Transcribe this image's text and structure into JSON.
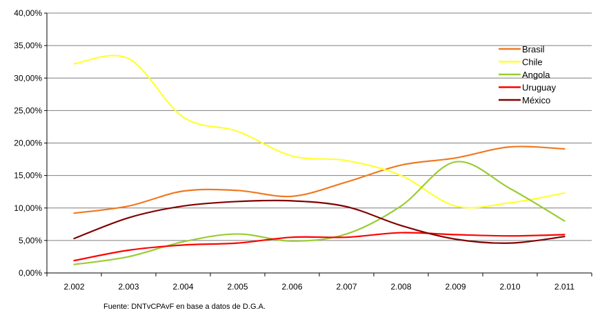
{
  "chart_data": {
    "type": "line",
    "categories": [
      "2.002",
      "2.003",
      "2.004",
      "2.005",
      "2.006",
      "2.007",
      "2.008",
      "2.009",
      "2.010",
      "2.011"
    ],
    "y_ticks": [
      "0,00%",
      "5,00%",
      "10,00%",
      "15,00%",
      "20,00%",
      "25,00%",
      "30,00%",
      "35,00%",
      "40,00%"
    ],
    "ylim": [
      0,
      40
    ],
    "grid": true,
    "legend_position": "right",
    "series": [
      {
        "name": "Brasil",
        "color": "#f07820",
        "values": [
          9.2,
          10.3,
          12.6,
          12.7,
          11.8,
          14.0,
          16.6,
          17.7,
          19.4,
          19.1
        ]
      },
      {
        "name": "Chile",
        "color": "#ffff33",
        "values": [
          32.2,
          33.0,
          24.0,
          21.8,
          18.0,
          17.3,
          15.0,
          10.3,
          10.8,
          12.3
        ]
      },
      {
        "name": "Angola",
        "color": "#99cc33",
        "values": [
          1.3,
          2.5,
          4.8,
          6.0,
          4.9,
          6.0,
          10.3,
          17.1,
          13.0,
          8.0
        ]
      },
      {
        "name": "Uruguay",
        "color": "#ff0000",
        "values": [
          1.9,
          3.5,
          4.3,
          4.6,
          5.5,
          5.5,
          6.2,
          5.9,
          5.7,
          5.9
        ]
      },
      {
        "name": "México",
        "color": "#800000",
        "values": [
          5.3,
          8.5,
          10.3,
          11.0,
          11.1,
          10.2,
          7.3,
          5.2,
          4.6,
          5.6
        ]
      }
    ],
    "source_note": "Fuente: DNTvCPAvF en base a datos de D.G.A."
  }
}
